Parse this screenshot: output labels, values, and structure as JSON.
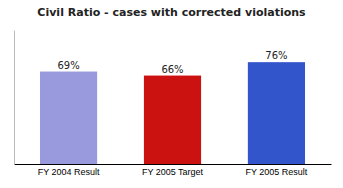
{
  "chart_data": {
    "type": "bar",
    "title": "Civil Ratio - cases with corrected violations",
    "categories": [
      "FY 2004 Result",
      "FY 2005 Target",
      "FY 2005 Result"
    ],
    "values": [
      69,
      66,
      76
    ],
    "value_labels": [
      "69%",
      "66%",
      "76%"
    ],
    "colors": [
      "#9999dd",
      "#cc1111",
      "#3355cc"
    ],
    "ylim": [
      0,
      100
    ],
    "grid": false,
    "data_labels": true,
    "tick_labels": "x"
  }
}
